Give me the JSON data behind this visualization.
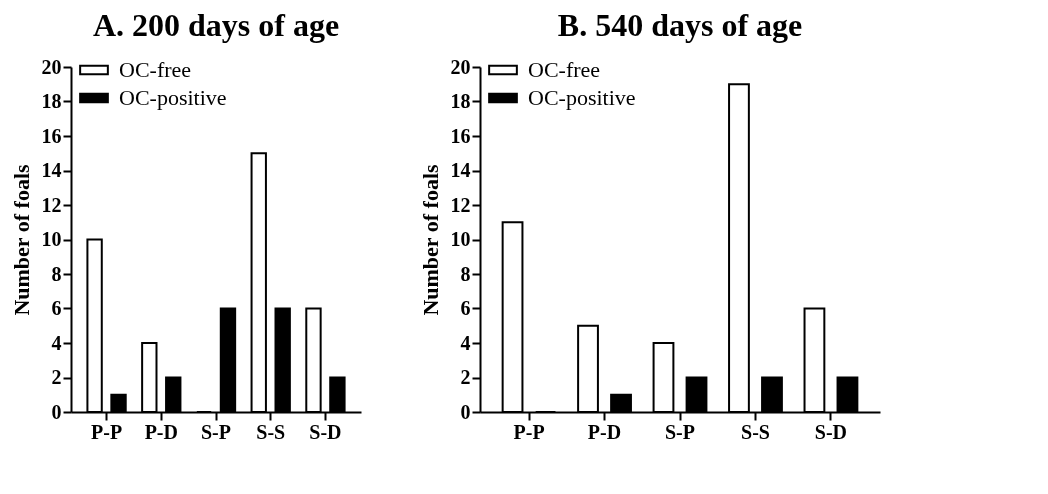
{
  "chart_data": [
    {
      "type": "bar",
      "title": "A. 200 days of age",
      "ylabel": "Number of foals",
      "categories": [
        "P-P",
        "P-D",
        "S-P",
        "S-S",
        "S-D"
      ],
      "series": [
        {
          "name": "OC-free",
          "color": "#ffffff",
          "values": [
            10,
            4,
            0,
            15,
            6
          ]
        },
        {
          "name": "OC-positive",
          "color": "#000000",
          "values": [
            1,
            2,
            6,
            6,
            2
          ]
        }
      ],
      "ylim": [
        0,
        20
      ],
      "yticks": [
        0,
        2,
        4,
        6,
        8,
        10,
        12,
        14,
        16,
        18,
        20
      ],
      "grid": false,
      "legend": "top left"
    },
    {
      "type": "bar",
      "title": "B. 540 days of age",
      "ylabel": "Number of foals",
      "categories": [
        "P-P",
        "P-D",
        "S-P",
        "S-S",
        "S-D"
      ],
      "series": [
        {
          "name": "OC-free",
          "color": "#ffffff",
          "values": [
            11,
            5,
            4,
            19,
            6
          ]
        },
        {
          "name": "OC-positive",
          "color": "#000000",
          "values": [
            0,
            1,
            2,
            2,
            2
          ]
        }
      ],
      "ylim": [
        0,
        20
      ],
      "yticks": [
        0,
        2,
        4,
        6,
        8,
        10,
        12,
        14,
        16,
        18,
        20
      ],
      "grid": false,
      "legend": "top left"
    }
  ]
}
